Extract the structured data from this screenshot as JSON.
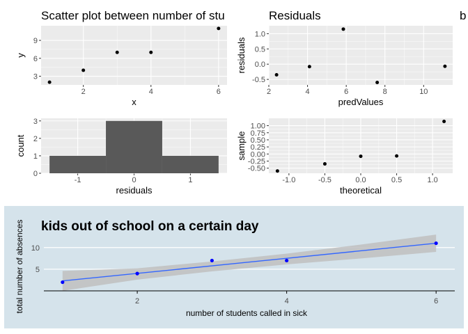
{
  "chart_data": [
    {
      "type": "scatter",
      "title": "Scatter plot between number of stu",
      "xlabel": "x",
      "ylabel": "y",
      "x": [
        1,
        2,
        3,
        4,
        6
      ],
      "y": [
        2,
        4,
        7,
        7,
        11
      ],
      "xlim": [
        0.75,
        6.25
      ],
      "ylim": [
        1.55,
        11.45
      ],
      "xticks": [
        2,
        4,
        6
      ],
      "yticks": [
        3,
        6,
        9
      ],
      "grid": true,
      "colors": {
        "panel": "#ebebeb",
        "point": "#000000"
      }
    },
    {
      "type": "scatter",
      "title": "Residuals",
      "xlabel": "predValues",
      "ylabel": "residuals",
      "x": [
        2.4,
        4.1,
        5.85,
        7.6,
        11.1
      ],
      "y": [
        -0.35,
        -0.08,
        1.15,
        -0.6,
        -0.07
      ],
      "xlim": [
        2.0,
        11.5
      ],
      "ylim": [
        -0.68,
        1.26
      ],
      "xticks": [
        2,
        4,
        6,
        8,
        10
      ],
      "yticks": [
        -0.5,
        0.0,
        0.5,
        1.0
      ],
      "yticklabels": [
        "-0.5",
        "0.0",
        "0.5",
        "1.0"
      ],
      "grid": true,
      "colors": {
        "panel": "#ebebeb",
        "point": "#000000"
      }
    },
    {
      "type": "bar",
      "title": "",
      "xlabel": "residuals",
      "ylabel": "count",
      "bins": [
        [
          -1.5,
          -0.5
        ],
        [
          -0.5,
          0.5
        ],
        [
          0.5,
          1.5
        ]
      ],
      "values": [
        1,
        3,
        1
      ],
      "xlim": [
        -1.65,
        1.65
      ],
      "ylim": [
        0,
        3.15
      ],
      "xticks": [
        -1,
        0,
        1
      ],
      "yticks": [
        0,
        1,
        2,
        3
      ],
      "grid": true,
      "colors": {
        "panel": "#ebebeb",
        "bar": "#595959"
      }
    },
    {
      "type": "scatter",
      "title": "",
      "xlabel": "theoretical",
      "ylabel": "sample",
      "x": [
        -1.16,
        -0.5,
        0.0,
        0.5,
        1.16
      ],
      "y": [
        -0.6,
        -0.35,
        -0.08,
        -0.07,
        1.15
      ],
      "xlim": [
        -1.28,
        1.28
      ],
      "ylim": [
        -0.68,
        1.26
      ],
      "xticks": [
        -1.0,
        -0.5,
        0.0,
        0.5,
        1.0
      ],
      "xticklabels": [
        "-1.0",
        "-0.5",
        "0.0",
        "0.5",
        "1.0"
      ],
      "yticks": [
        -0.5,
        -0.25,
        0.0,
        0.25,
        0.5,
        0.75,
        1.0
      ],
      "yticklabels": [
        "-0.50",
        "-0.25",
        "0.00",
        "0.25",
        "0.50",
        "0.75",
        "1.00"
      ],
      "grid": true,
      "colors": {
        "panel": "#ebebeb",
        "point": "#000000"
      }
    },
    {
      "type": "scatter",
      "title": "kids out of school on a certain day",
      "xlabel": "number of students called in sick",
      "ylabel": "total number of absences",
      "x": [
        1,
        2,
        3,
        4,
        6
      ],
      "y": [
        2,
        4,
        7,
        7,
        11
      ],
      "xlim": [
        0.75,
        6.25
      ],
      "ylim": [
        0,
        13.5
      ],
      "xticks": [
        2,
        4,
        6
      ],
      "yticks": [
        5,
        10
      ],
      "trend_line": {
        "x": [
          1,
          6
        ],
        "y": [
          2.3,
          11.0
        ]
      },
      "confidence_band": {
        "x": [
          1,
          2,
          3,
          4,
          5,
          6
        ],
        "lower": [
          0.0,
          2.6,
          4.5,
          6.1,
          7.5,
          9.0
        ],
        "upper": [
          4.6,
          5.2,
          6.8,
          8.6,
          10.7,
          13.0
        ]
      },
      "colors": {
        "background": "#d5e3eb",
        "point": "#0000ff",
        "line": "#3366ff",
        "band": "#bfbfbf"
      }
    }
  ]
}
